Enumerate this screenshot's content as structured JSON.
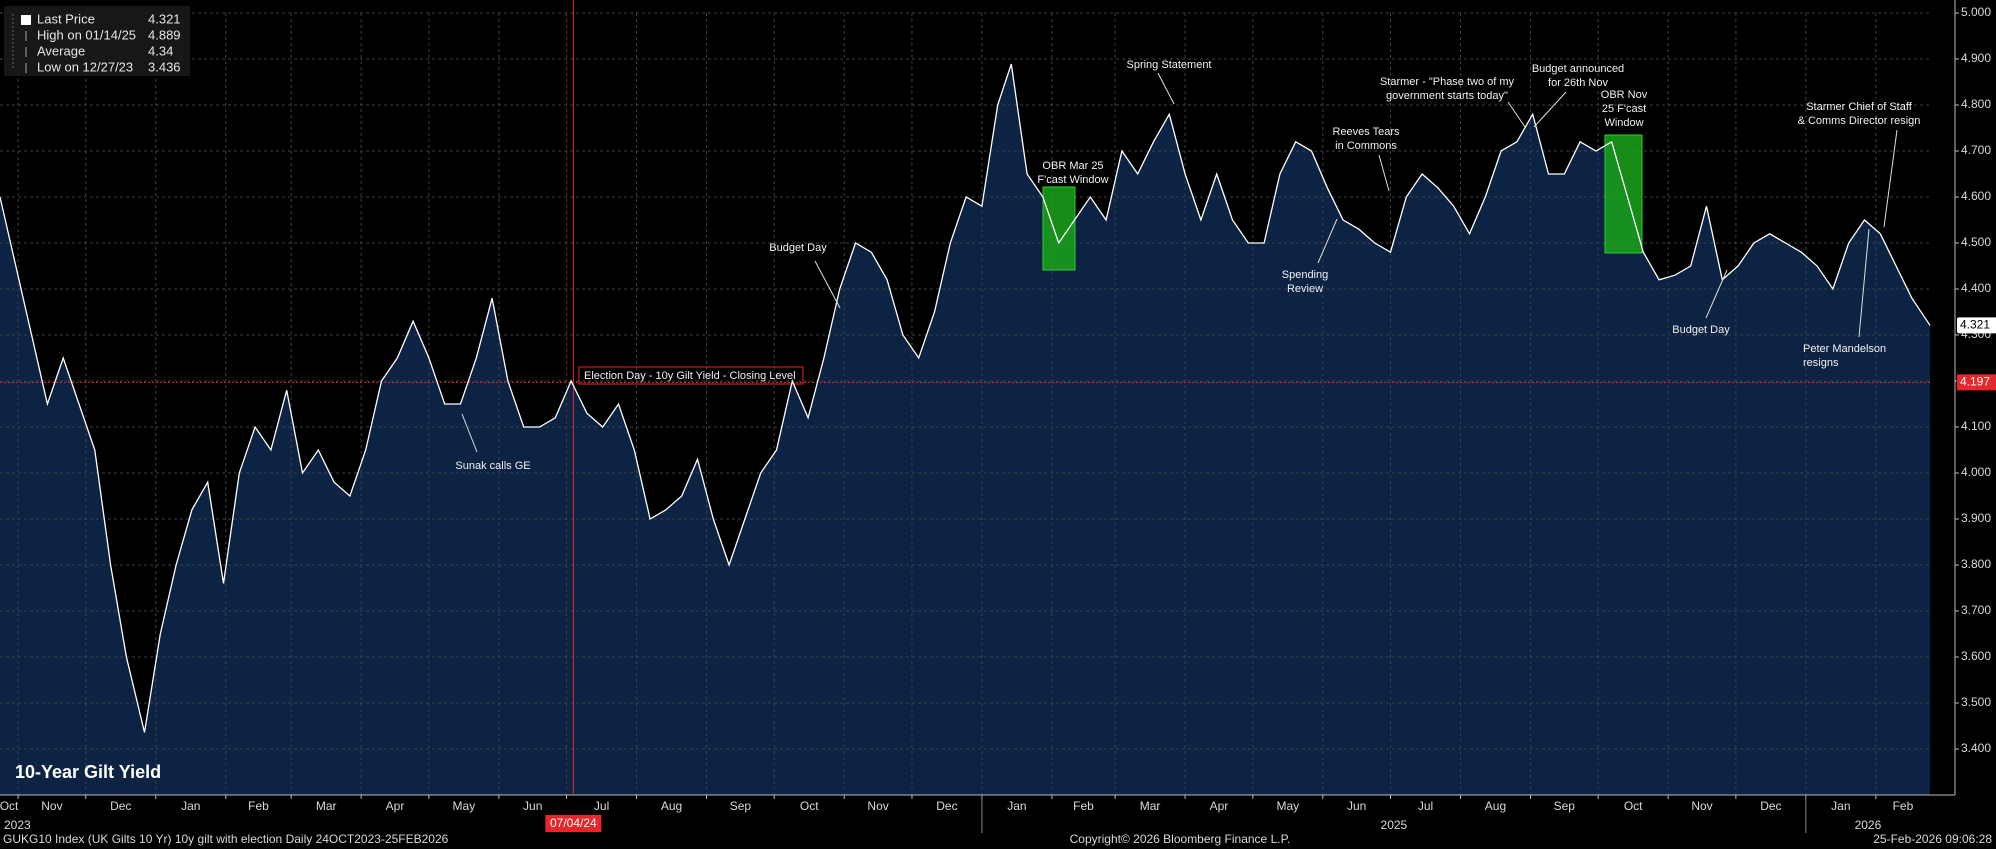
{
  "chart_data": {
    "type": "area",
    "title": "10-Year Gilt Yield",
    "line_color": "#ffffff",
    "area_color": "#0d2344",
    "grid": true,
    "xlim": [
      "2023-10-24",
      "2026-02-25"
    ],
    "ylim": [
      3.3,
      5.0
    ],
    "yticks": [
      {
        "value": 3.4,
        "label": "3.400"
      },
      {
        "value": 3.5,
        "label": "3.500"
      },
      {
        "value": 3.6,
        "label": "3.600"
      },
      {
        "value": 3.7,
        "label": "3.700"
      },
      {
        "value": 3.8,
        "label": "3.800"
      },
      {
        "value": 3.9,
        "label": "3.900"
      },
      {
        "value": 4.0,
        "label": "4.000"
      },
      {
        "value": 4.1,
        "label": "4.100"
      },
      {
        "value": 4.2,
        "label": "4.200"
      },
      {
        "value": 4.3,
        "label": "4.300"
      },
      {
        "value": 4.4,
        "label": "4.400"
      },
      {
        "value": 4.5,
        "label": "4.500"
      },
      {
        "value": 4.6,
        "label": "4.600"
      },
      {
        "value": 4.7,
        "label": "4.700"
      },
      {
        "value": 4.8,
        "label": "4.800"
      },
      {
        "value": 4.9,
        "label": "4.900"
      },
      {
        "value": 5.0,
        "label": "5.000"
      }
    ],
    "xticks": [
      {
        "value": "2023-10",
        "label": "Oct"
      },
      {
        "value": "2023-11",
        "label": "Nov"
      },
      {
        "value": "2023-12",
        "label": "Dec"
      },
      {
        "value": "2024-01",
        "label": "Jan"
      },
      {
        "value": "2024-02",
        "label": "Feb"
      },
      {
        "value": "2024-03",
        "label": "Mar"
      },
      {
        "value": "2024-04",
        "label": "Apr"
      },
      {
        "value": "2024-05",
        "label": "May"
      },
      {
        "value": "2024-06",
        "label": "Jun"
      },
      {
        "value": "2024-07",
        "label": "Jul"
      },
      {
        "value": "2024-08",
        "label": "Aug"
      },
      {
        "value": "2024-09",
        "label": "Sep"
      },
      {
        "value": "2024-10",
        "label": "Oct"
      },
      {
        "value": "2024-11",
        "label": "Nov"
      },
      {
        "value": "2024-12",
        "label": "Dec"
      },
      {
        "value": "2025-01",
        "label": "Jan"
      },
      {
        "value": "2025-02",
        "label": "Feb"
      },
      {
        "value": "2025-03",
        "label": "Mar"
      },
      {
        "value": "2025-04",
        "label": "Apr"
      },
      {
        "value": "2025-05",
        "label": "May"
      },
      {
        "value": "2025-06",
        "label": "Jun"
      },
      {
        "value": "2025-07",
        "label": "Jul"
      },
      {
        "value": "2025-08",
        "label": "Aug"
      },
      {
        "value": "2025-09",
        "label": "Sep"
      },
      {
        "value": "2025-10",
        "label": "Oct"
      },
      {
        "value": "2025-11",
        "label": "Nov"
      },
      {
        "value": "2025-12",
        "label": "Dec"
      },
      {
        "value": "2026-01",
        "label": "Jan"
      },
      {
        "value": "2026-02",
        "label": "Feb"
      }
    ],
    "year_labels": [
      "2023",
      "2025",
      "2026"
    ],
    "x": [
      "2023-10-24",
      "2023-10-31",
      "2023-11-07",
      "2023-11-14",
      "2023-11-21",
      "2023-11-28",
      "2023-12-05",
      "2023-12-12",
      "2023-12-19",
      "2023-12-27",
      "2024-01-03",
      "2024-01-10",
      "2024-01-17",
      "2024-01-24",
      "2024-01-31",
      "2024-02-07",
      "2024-02-14",
      "2024-02-21",
      "2024-02-28",
      "2024-03-06",
      "2024-03-13",
      "2024-03-20",
      "2024-03-27",
      "2024-04-03",
      "2024-04-10",
      "2024-04-17",
      "2024-04-24",
      "2024-05-01",
      "2024-05-08",
      "2024-05-15",
      "2024-05-22",
      "2024-05-29",
      "2024-06-05",
      "2024-06-12",
      "2024-06-19",
      "2024-06-26",
      "2024-07-03",
      "2024-07-10",
      "2024-07-17",
      "2024-07-24",
      "2024-07-31",
      "2024-08-07",
      "2024-08-14",
      "2024-08-21",
      "2024-08-28",
      "2024-09-04",
      "2024-09-11",
      "2024-09-18",
      "2024-09-25",
      "2024-10-02",
      "2024-10-09",
      "2024-10-16",
      "2024-10-23",
      "2024-10-30",
      "2024-11-06",
      "2024-11-13",
      "2024-11-20",
      "2024-11-27",
      "2024-12-04",
      "2024-12-11",
      "2024-12-18",
      "2024-12-25",
      "2025-01-01",
      "2025-01-08",
      "2025-01-14",
      "2025-01-21",
      "2025-01-28",
      "2025-02-04",
      "2025-02-11",
      "2025-02-18",
      "2025-02-25",
      "2025-03-04",
      "2025-03-11",
      "2025-03-18",
      "2025-03-25",
      "2025-04-01",
      "2025-04-08",
      "2025-04-15",
      "2025-04-22",
      "2025-04-29",
      "2025-05-06",
      "2025-05-13",
      "2025-05-20",
      "2025-05-27",
      "2025-06-03",
      "2025-06-10",
      "2025-06-17",
      "2025-06-24",
      "2025-07-01",
      "2025-07-08",
      "2025-07-15",
      "2025-07-22",
      "2025-07-29",
      "2025-08-05",
      "2025-08-12",
      "2025-08-19",
      "2025-08-26",
      "2025-09-02",
      "2025-09-09",
      "2025-09-16",
      "2025-09-23",
      "2025-09-30",
      "2025-10-07",
      "2025-10-14",
      "2025-10-21",
      "2025-10-28",
      "2025-11-04",
      "2025-11-11",
      "2025-11-18",
      "2025-11-25",
      "2025-12-02",
      "2025-12-09",
      "2025-12-16",
      "2025-12-23",
      "2025-12-30",
      "2026-01-06",
      "2026-01-13",
      "2026-01-20",
      "2026-01-27",
      "2026-02-03",
      "2026-02-10",
      "2026-02-17",
      "2026-02-25"
    ],
    "series": [
      {
        "name": "Last Price",
        "values": [
          4.6,
          4.45,
          4.3,
          4.15,
          4.25,
          4.15,
          4.05,
          3.8,
          3.6,
          3.436,
          3.65,
          3.8,
          3.92,
          3.98,
          3.76,
          4.0,
          4.1,
          4.05,
          4.18,
          4.0,
          4.05,
          3.98,
          3.95,
          4.05,
          4.2,
          4.25,
          4.33,
          4.25,
          4.15,
          4.15,
          4.25,
          4.38,
          4.2,
          4.1,
          4.1,
          4.12,
          4.2,
          4.13,
          4.1,
          4.15,
          4.05,
          3.9,
          3.92,
          3.95,
          4.03,
          3.9,
          3.8,
          3.9,
          4.0,
          4.05,
          4.2,
          4.12,
          4.25,
          4.4,
          4.5,
          4.48,
          4.42,
          4.3,
          4.25,
          4.35,
          4.5,
          4.6,
          4.58,
          4.8,
          4.889,
          4.65,
          4.6,
          4.5,
          4.55,
          4.6,
          4.55,
          4.7,
          4.65,
          4.72,
          4.78,
          4.65,
          4.55,
          4.65,
          4.55,
          4.5,
          4.5,
          4.65,
          4.72,
          4.7,
          4.62,
          4.55,
          4.53,
          4.5,
          4.48,
          4.6,
          4.65,
          4.62,
          4.58,
          4.52,
          4.6,
          4.7,
          4.72,
          4.78,
          4.65,
          4.65,
          4.72,
          4.7,
          4.72,
          4.6,
          4.48,
          4.42,
          4.43,
          4.45,
          4.58,
          4.42,
          4.45,
          4.5,
          4.52,
          4.5,
          4.48,
          4.45,
          4.4,
          4.5,
          4.55,
          4.52,
          4.45,
          4.38,
          4.321
        ]
      }
    ],
    "legend": {
      "entries": [
        {
          "name": "Last Price",
          "value": 4.321
        },
        {
          "name": "High on 01/14/25",
          "value": 4.889
        },
        {
          "name": "Average",
          "value": 4.34
        },
        {
          "name": "Low on 12/27/23",
          "value": 3.436
        }
      ]
    },
    "reference_line": {
      "value": 4.197,
      "label": "4.197",
      "text": "Election Day - 10y Gilt Yield - Closing Level",
      "color": "#e8262c"
    },
    "date_marker": {
      "value": "2024-07-04",
      "label": "07/04/24"
    },
    "annotations": [
      {
        "lines": [
          "Sunak calls GE"
        ]
      },
      {
        "lines": [
          "Budget Day"
        ]
      },
      {
        "lines": [
          "OBR Mar 25",
          "F'cast Window"
        ]
      },
      {
        "lines": [
          "Spring Statement"
        ]
      },
      {
        "lines": [
          "Reeves Tears",
          "in Commons"
        ]
      },
      {
        "lines": [
          "Spending",
          "Review"
        ]
      },
      {
        "lines": [
          "Starmer - \"Phase two of my",
          "government starts today\""
        ]
      },
      {
        "lines": [
          "Budget announced",
          "for 26th Nov"
        ]
      },
      {
        "lines": [
          "OBR Nov",
          "25 F'cast",
          "Window"
        ]
      },
      {
        "lines": [
          "Budget Day"
        ]
      },
      {
        "lines": [
          "Starmer Chief of Staff",
          "& Comms Director resign"
        ]
      },
      {
        "lines": [
          "Peter Mandelson",
          "resigns"
        ]
      }
    ],
    "footer": {
      "left": "GUKG10 Index (UK Gilts 10 Yr) 10y gilt with election Daily 24OCT2023-25FEB2026",
      "center": "Copyright© 2026 Bloomberg Finance L.P.",
      "right": "25-Feb-2026 09:06:28"
    }
  }
}
